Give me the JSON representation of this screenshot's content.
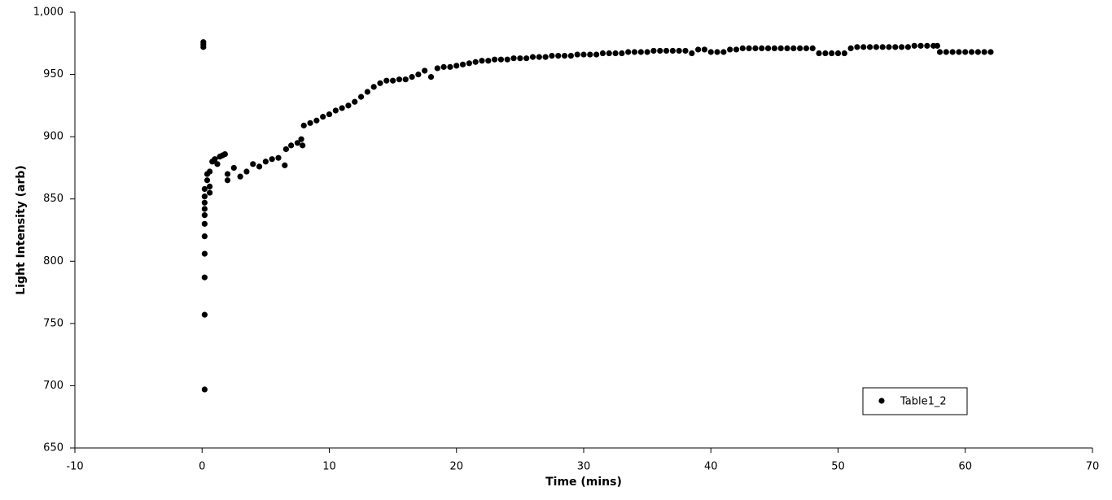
{
  "chart_data": {
    "type": "scatter",
    "xlabel": "Time (mins)",
    "ylabel": "Light Intensity (arb)",
    "xlim": [
      -10,
      70
    ],
    "xticks": [
      -10,
      0,
      10,
      20,
      30,
      40,
      50,
      60,
      70
    ],
    "ylim": [
      650,
      1000
    ],
    "yticks": [
      650,
      700,
      750,
      800,
      850,
      900,
      950,
      {
        "value": 1000,
        "label": "1,000"
      }
    ],
    "legend": "lower right",
    "series": [
      {
        "name": "Table1_2",
        "color": "#000000",
        "x": [
          0.1,
          0.1,
          0.1,
          0.2,
          0.2,
          0.2,
          0.2,
          0.2,
          0.2,
          0.2,
          0.2,
          0.2,
          0.2,
          0.2,
          0.4,
          0.4,
          0.6,
          0.6,
          0.6,
          0.8,
          1.0,
          1.2,
          1.4,
          1.6,
          1.8,
          2.0,
          2.0,
          2.5,
          3.0,
          3.5,
          4.0,
          4.5,
          5.0,
          5.5,
          6.0,
          6.5,
          6.6,
          7.0,
          7.5,
          7.8,
          7.9,
          8.0,
          8.5,
          9.0,
          9.5,
          10.0,
          10.5,
          11.0,
          11.5,
          12.0,
          12.5,
          13.0,
          13.5,
          14.0,
          14.5,
          15.0,
          15.5,
          16.0,
          16.5,
          17.0,
          17.5,
          18.0,
          18.5,
          19.0,
          19.5,
          20.0,
          20.5,
          21.0,
          21.5,
          22.0,
          22.5,
          23.0,
          23.5,
          24.0,
          24.5,
          25.0,
          25.5,
          26.0,
          26.5,
          27.0,
          27.5,
          28.0,
          28.5,
          29.0,
          29.5,
          30.0,
          30.5,
          31.0,
          31.5,
          32.0,
          32.5,
          33.0,
          33.5,
          34.0,
          34.5,
          35.0,
          35.5,
          36.0,
          36.5,
          37.0,
          37.5,
          38.0,
          38.5,
          39.0,
          39.5,
          40.0,
          40.5,
          41.0,
          41.5,
          42.0,
          42.5,
          43.0,
          43.5,
          44.0,
          44.5,
          45.0,
          45.5,
          46.0,
          46.5,
          47.0,
          47.5,
          48.0,
          48.5,
          49.0,
          49.5,
          50.0,
          50.5,
          51.0,
          51.5,
          52.0,
          52.5,
          53.0,
          53.5,
          54.0,
          54.5,
          55.0,
          55.5,
          56.0,
          56.5,
          57.0,
          57.5,
          57.8,
          58.0,
          58.5,
          59.0,
          59.5,
          60.0,
          60.5,
          61.0,
          61.5,
          62.0
        ],
        "values": [
          976,
          974,
          972,
          697,
          757,
          787,
          806,
          820,
          830,
          837,
          842,
          847,
          852,
          858,
          865,
          870,
          855,
          860,
          872,
          880,
          882,
          878,
          884,
          885,
          886,
          865,
          870,
          875,
          868,
          872,
          878,
          876,
          880,
          882,
          883,
          877,
          890,
          893,
          895,
          898,
          893,
          909,
          911,
          913,
          916,
          918,
          921,
          923,
          925,
          928,
          932,
          936,
          940,
          943,
          945,
          945,
          946,
          946,
          948,
          950,
          953,
          948,
          955,
          956,
          956,
          957,
          958,
          959,
          960,
          961,
          961,
          962,
          962,
          962,
          963,
          963,
          963,
          964,
          964,
          964,
          965,
          965,
          965,
          965,
          966,
          966,
          966,
          966,
          967,
          967,
          967,
          967,
          968,
          968,
          968,
          968,
          969,
          969,
          969,
          969,
          969,
          969,
          967,
          970,
          970,
          968,
          968,
          968,
          970,
          970,
          971,
          971,
          971,
          971,
          971,
          971,
          971,
          971,
          971,
          971,
          971,
          971,
          967,
          967,
          967,
          967,
          967,
          971,
          972,
          972,
          972,
          972,
          972,
          972,
          972,
          972,
          972,
          973,
          973,
          973,
          973,
          973,
          968,
          968,
          968,
          968,
          968,
          968,
          968,
          968,
          968
        ]
      }
    ]
  }
}
